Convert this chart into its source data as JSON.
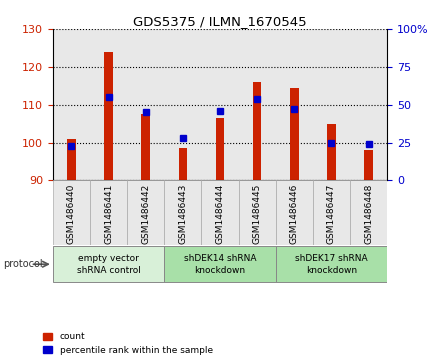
{
  "title": "GDS5375 / ILMN_1670545",
  "samples": [
    "GSM1486440",
    "GSM1486441",
    "GSM1486442",
    "GSM1486443",
    "GSM1486444",
    "GSM1486445",
    "GSM1486446",
    "GSM1486447",
    "GSM1486448"
  ],
  "count_values": [
    101.0,
    124.0,
    107.5,
    98.5,
    106.5,
    116.0,
    114.5,
    105.0,
    98.0
  ],
  "percentile_values": [
    23,
    55,
    45,
    28,
    46,
    54,
    47,
    25,
    24
  ],
  "ylim_left": [
    90,
    130
  ],
  "ylim_right": [
    0,
    100
  ],
  "yticks_left": [
    90,
    100,
    110,
    120,
    130
  ],
  "yticks_right": [
    0,
    25,
    50,
    75,
    100
  ],
  "bar_color": "#cc2200",
  "dot_color": "#0000cc",
  "bg_color": "#e8e8e8",
  "groups": [
    {
      "label": "empty vector\nshRNA control",
      "start": 0,
      "end": 3
    },
    {
      "label": "shDEK14 shRNA\nknockdown",
      "start": 3,
      "end": 6
    },
    {
      "label": "shDEK17 shRNA\nknockdown",
      "start": 6,
      "end": 9
    }
  ],
  "group_colors": [
    "#d8f0d8",
    "#a8e0a8",
    "#a8e0a8"
  ],
  "protocol_label": "protocol",
  "legend_count_label": "count",
  "legend_percentile_label": "percentile rank within the sample",
  "base_value": 90
}
